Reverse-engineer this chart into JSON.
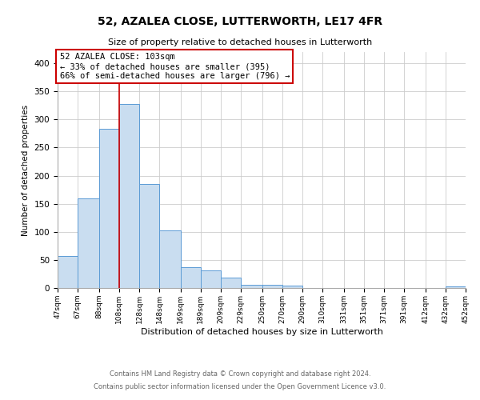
{
  "title": "52, AZALEA CLOSE, LUTTERWORTH, LE17 4FR",
  "subtitle": "Size of property relative to detached houses in Lutterworth",
  "xlabel": "Distribution of detached houses by size in Lutterworth",
  "ylabel": "Number of detached properties",
  "bar_edges": [
    47,
    67,
    88,
    108,
    128,
    148,
    169,
    189,
    209,
    229,
    250,
    270,
    290,
    310,
    331,
    351,
    371,
    391,
    412,
    432,
    452
  ],
  "bar_heights": [
    57,
    160,
    283,
    328,
    185,
    103,
    37,
    32,
    18,
    6,
    5,
    4,
    0,
    0,
    0,
    0,
    0,
    0,
    0,
    3
  ],
  "bar_color": "#c9ddf0",
  "bar_edge_color": "#5b9bd5",
  "ref_line_x": 108,
  "ref_line_color": "#cc0000",
  "ylim": [
    0,
    420
  ],
  "yticks": [
    0,
    50,
    100,
    150,
    200,
    250,
    300,
    350,
    400
  ],
  "annotation_title": "52 AZALEA CLOSE: 103sqm",
  "annotation_line1": "← 33% of detached houses are smaller (395)",
  "annotation_line2": "66% of semi-detached houses are larger (796) →",
  "footer_line1": "Contains HM Land Registry data © Crown copyright and database right 2024.",
  "footer_line2": "Contains public sector information licensed under the Open Government Licence v3.0.",
  "tick_labels": [
    "47sqm",
    "67sqm",
    "88sqm",
    "108sqm",
    "128sqm",
    "148sqm",
    "169sqm",
    "189sqm",
    "209sqm",
    "229sqm",
    "250sqm",
    "270sqm",
    "290sqm",
    "310sqm",
    "331sqm",
    "351sqm",
    "371sqm",
    "391sqm",
    "412sqm",
    "432sqm",
    "452sqm"
  ],
  "background_color": "#ffffff",
  "grid_color": "#cccccc"
}
